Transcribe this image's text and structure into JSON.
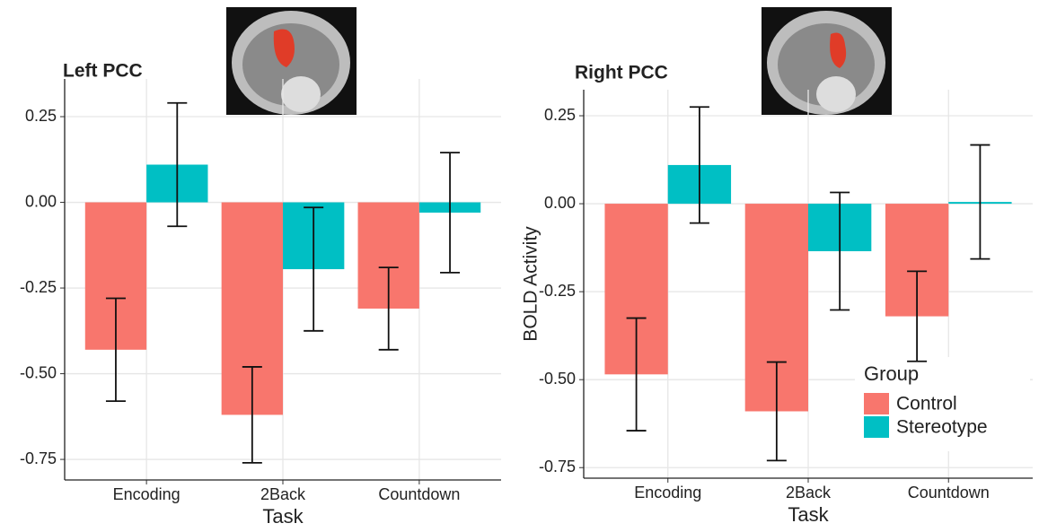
{
  "chart_data": [
    {
      "type": "bar",
      "title": "Left PCC",
      "x_label": "Task",
      "categories": [
        "Encoding",
        "2Back",
        "Countdown"
      ],
      "series": [
        {
          "color": "#f8766d",
          "values": [
            -0.43,
            -0.62,
            -0.31
          ],
          "errors": [
            0.15,
            0.14,
            0.12
          ]
        },
        {
          "color": "#00bfc4",
          "values": [
            0.11,
            -0.195,
            -0.03
          ],
          "errors": [
            0.18,
            0.18,
            0.175
          ]
        }
      ],
      "ylim": [
        -0.81,
        0.36
      ],
      "yticks": [
        0.25,
        {
          "value": 0,
          "label": "0.00"
        },
        -0.25,
        {
          "value": -0.5,
          "label": "-0.50"
        },
        -0.75
      ],
      "grid": true,
      "legend": false
    },
    {
      "type": "bar",
      "title": "Right PCC",
      "x_label": "Task",
      "y_label": "BOLD Activity",
      "categories": [
        "Encoding",
        "2Back",
        "Countdown"
      ],
      "series": [
        {
          "name": "Control",
          "color": "#f8766d",
          "values": [
            -0.485,
            -0.59,
            -0.32
          ],
          "errors": [
            0.16,
            0.14,
            0.128
          ]
        },
        {
          "name": "Stereotype",
          "color": "#00bfc4",
          "values": [
            0.11,
            -0.135,
            0.005
          ],
          "errors": [
            0.165,
            0.167,
            0.162
          ]
        }
      ],
      "ylim": [
        -0.78,
        0.324
      ],
      "yticks": [
        0.25,
        {
          "value": 0,
          "label": "0.00"
        },
        -0.25,
        {
          "value": -0.5,
          "label": "-0.50"
        },
        -0.75
      ],
      "grid": true,
      "legend": true,
      "legend_title": "Group",
      "legend_position": "bottom-right"
    }
  ]
}
